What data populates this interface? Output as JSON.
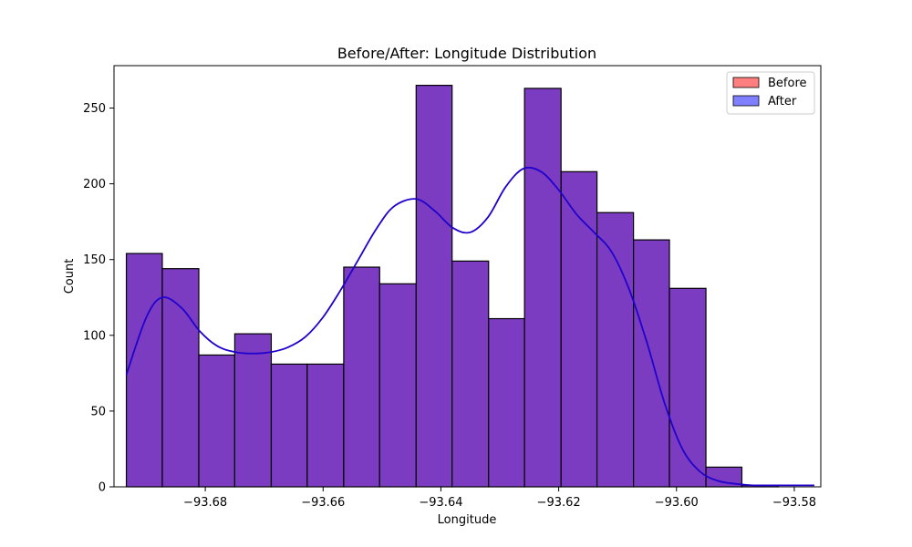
{
  "chart_data": {
    "type": "bar",
    "title": "Before/After: Longitude Distribution",
    "xlabel": "Longitude",
    "ylabel": "Count",
    "xlim": [
      -93.6955,
      -93.5755
    ],
    "ylim": [
      0,
      278
    ],
    "x_ticks": [
      -93.68,
      -93.66,
      -93.64,
      -93.62,
      -93.6,
      -93.58
    ],
    "x_tick_labels": [
      "−93.68",
      "−93.66",
      "−93.64",
      "−93.62",
      "−93.60",
      "−93.58"
    ],
    "y_ticks": [
      0,
      50,
      100,
      150,
      200,
      250
    ],
    "y_tick_labels": [
      "0",
      "50",
      "100",
      "150",
      "200",
      "250"
    ],
    "bin_edges": [
      -93.6934,
      -93.6873,
      -93.6811,
      -93.675,
      -93.6688,
      -93.6627,
      -93.6565,
      -93.6504,
      -93.6442,
      -93.6381,
      -93.6319,
      -93.6258,
      -93.6196,
      -93.6135,
      -93.6073,
      -93.6012,
      -93.595,
      -93.5889,
      -93.5827,
      -93.5766
    ],
    "series": [
      {
        "name": "Before",
        "color": "#ff7f7f",
        "values": [
          154,
          144,
          87,
          101,
          81,
          81,
          145,
          134,
          265,
          149,
          111,
          263,
          208,
          181,
          163,
          131,
          13,
          1,
          0
        ]
      },
      {
        "name": "After",
        "color": "#7f7fff",
        "values": [
          154,
          144,
          87,
          101,
          81,
          81,
          145,
          134,
          265,
          149,
          111,
          263,
          208,
          181,
          163,
          131,
          13,
          1,
          0
        ]
      }
    ],
    "overlap_color": "#7b3cc1",
    "kde": {
      "color": "#1f00cc",
      "x": [
        -93.6934,
        -93.69,
        -93.6873,
        -93.684,
        -93.681,
        -93.678,
        -93.675,
        -93.672,
        -93.6688,
        -93.666,
        -93.663,
        -93.66,
        -93.657,
        -93.654,
        -93.651,
        -93.648,
        -93.6442,
        -93.641,
        -93.638,
        -93.635,
        -93.632,
        -93.629,
        -93.626,
        -93.623,
        -93.62,
        -93.617,
        -93.614,
        -93.611,
        -93.608,
        -93.605,
        -93.602,
        -93.599,
        -93.596,
        -93.593,
        -93.59,
        -93.587,
        -93.584,
        -93.5766
      ],
      "y": [
        74,
        112,
        125,
        118,
        103,
        93,
        89,
        88,
        89,
        92,
        99,
        112,
        130,
        150,
        170,
        185,
        190,
        182,
        171,
        168,
        178,
        198,
        210,
        208,
        196,
        180,
        168,
        155,
        130,
        95,
        55,
        25,
        10,
        4,
        2,
        1,
        1,
        1
      ]
    },
    "grid": false,
    "legend_position": "top-right"
  }
}
